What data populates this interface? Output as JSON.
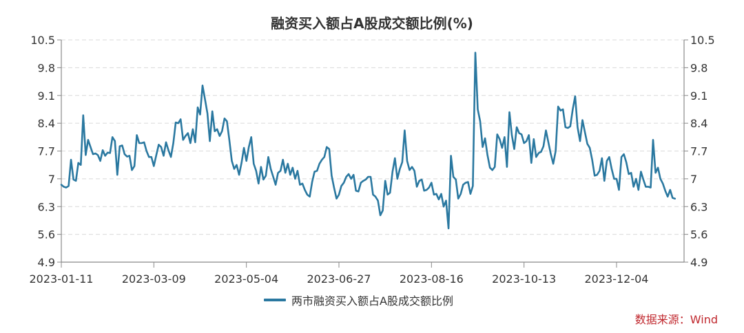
{
  "title": "融资买入额占A股成交额比例(%)",
  "legend": {
    "label": "两市融资买入额占A股成交额比例",
    "color": "#2a78a0"
  },
  "source": "数据来源：Wind",
  "colors": {
    "line": "#2a78a0",
    "axis": "#888888",
    "grid": "#d9d9d9",
    "text": "#333333",
    "source": "#c0272d"
  },
  "chart_data": {
    "type": "line",
    "title": "融资买入额占A股成交额比例(%)",
    "xlabel": "",
    "ylabel": "",
    "ylim": [
      4.9,
      10.5
    ],
    "yticks": [
      4.9,
      5.6,
      6.3,
      7,
      7.7,
      8.4,
      9.1,
      9.8,
      10.5
    ],
    "ytick_labels": [
      "4.9",
      "5.6",
      "6.3",
      "7",
      "7.7",
      "8.4",
      "9.1",
      "9.8",
      "10.5"
    ],
    "xticks": [
      "2023-01-11",
      "2023-03-09",
      "2023-05-04",
      "2023-06-27",
      "2023-08-16",
      "2023-10-13",
      "2023-12-04"
    ],
    "xtick_index": [
      0,
      38,
      76,
      114,
      152,
      190,
      228
    ],
    "grid": true,
    "dual_y_axis": true,
    "legend_position": "bottom",
    "series": [
      {
        "name": "两市融资买入额占A股成交额比例",
        "values": [
          6.85,
          6.8,
          6.78,
          6.82,
          7.48,
          6.98,
          6.95,
          7.4,
          7.35,
          8.6,
          7.6,
          7.98,
          7.8,
          7.62,
          7.64,
          7.6,
          7.45,
          7.72,
          7.58,
          7.66,
          7.65,
          8.05,
          7.95,
          7.1,
          7.82,
          7.84,
          7.62,
          7.56,
          7.58,
          7.22,
          7.32,
          8.1,
          7.9,
          7.9,
          7.92,
          7.7,
          7.55,
          7.55,
          7.32,
          7.6,
          7.86,
          7.8,
          7.58,
          7.92,
          7.72,
          7.55,
          7.9,
          8.42,
          8.4,
          8.5,
          7.98,
          8.08,
          8.15,
          7.9,
          8.25,
          7.92,
          8.8,
          8.62,
          9.35,
          9.0,
          8.65,
          7.95,
          8.7,
          8.2,
          8.25,
          8.08,
          8.2,
          8.52,
          8.45,
          7.98,
          7.45,
          7.25,
          7.35,
          7.1,
          7.4,
          7.78,
          7.45,
          7.8,
          8.05,
          7.38,
          7.2,
          6.88,
          7.3,
          6.98,
          7.08,
          7.55,
          7.25,
          7.05,
          6.85,
          7.15,
          7.2,
          7.48,
          7.15,
          7.38,
          7.1,
          7.28,
          7.0,
          7.2,
          6.85,
          6.88,
          6.72,
          6.6,
          6.55,
          6.92,
          7.18,
          7.2,
          7.38,
          7.48,
          7.55,
          7.8,
          7.75,
          7.08,
          6.78,
          6.5,
          6.6,
          6.82,
          6.9,
          7.05,
          7.12,
          7.0,
          7.1,
          6.7,
          6.68,
          6.9,
          6.95,
          6.98,
          7.05,
          7.05,
          6.6,
          6.55,
          6.45,
          6.08,
          6.2,
          6.95,
          6.6,
          6.65,
          7.18,
          7.52,
          7.0,
          7.25,
          7.42,
          8.22,
          7.45,
          7.22,
          7.3,
          7.2,
          6.8,
          6.95,
          6.98,
          6.7,
          6.72,
          6.78,
          6.9,
          6.6,
          6.62,
          6.48,
          6.62,
          6.3,
          6.45,
          5.75,
          7.58,
          7.05,
          6.98,
          6.5,
          6.62,
          6.85,
          6.9,
          6.92,
          6.62,
          6.82,
          10.18,
          8.75,
          8.45,
          7.8,
          8.02,
          7.6,
          7.28,
          7.22,
          7.3,
          8.12,
          8.0,
          7.78,
          8.05,
          7.3,
          8.68,
          8.1,
          7.75,
          8.3,
          8.15,
          8.12,
          7.9,
          7.95,
          8.1,
          7.4,
          8.0,
          7.55,
          7.65,
          7.68,
          7.82,
          8.22,
          7.92,
          7.62,
          7.38,
          7.7,
          8.82,
          8.72,
          8.75,
          8.3,
          8.28,
          8.32,
          8.75,
          9.08,
          8.3,
          7.95,
          8.48,
          8.18,
          7.88,
          7.78,
          7.48,
          7.08,
          7.1,
          7.2,
          7.52,
          6.95,
          7.45,
          7.55,
          7.25,
          7.0,
          7.0,
          6.72,
          7.55,
          7.62,
          7.42,
          7.12,
          7.15,
          6.8,
          7.0,
          6.72,
          7.18,
          6.98,
          6.8,
          6.8,
          6.78,
          7.98,
          7.15,
          7.28,
          7.0,
          6.88,
          6.7,
          6.55,
          6.72,
          6.52,
          6.5
        ]
      }
    ]
  }
}
